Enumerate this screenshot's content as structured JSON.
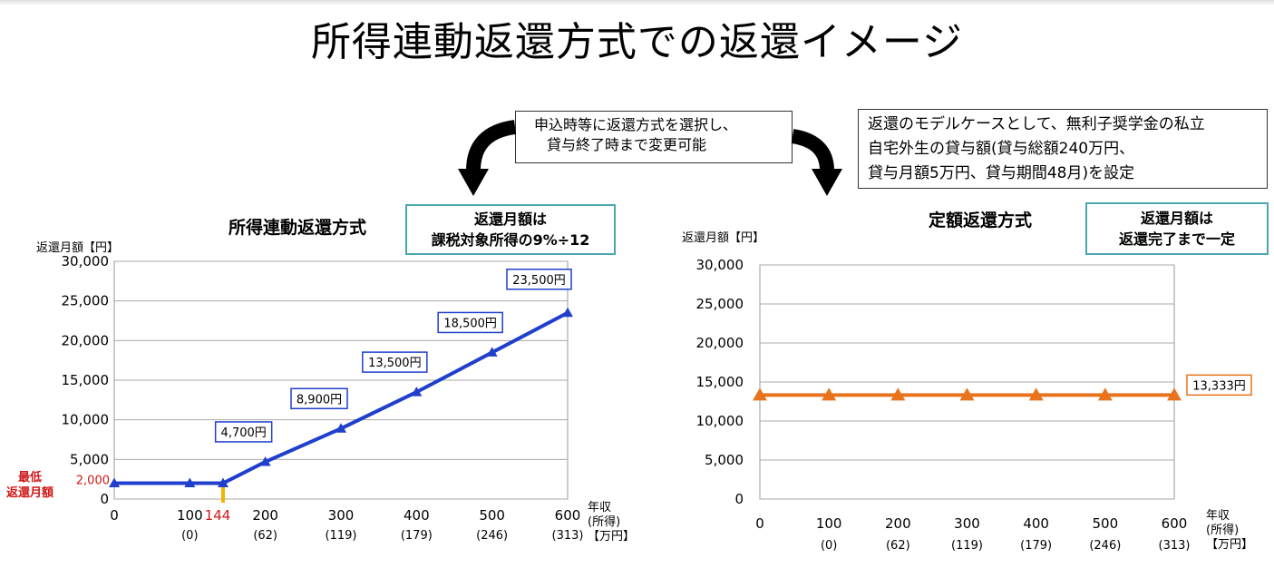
{
  "title": "所得連動返還方式での返還イメージ",
  "note_center": [
    "申込時等に返還方式を選択し、",
    "貸与終了時まで変更可能"
  ],
  "note_right": [
    "返還のモデルケースとして、無利子奨学金の私立",
    "自宅外生の貸与額(貸与総額240万円、",
    "貸与月額5万円、貸与期間48月)を設定"
  ],
  "colors": {
    "left_series": "#1f3fcc",
    "right_series": "#e8731c",
    "teal_border": "#4aa7b1",
    "minimum_label": "#d01818",
    "marker_144": "#f0b400"
  },
  "chart_data": [
    {
      "type": "line",
      "title": "所得連動返還方式",
      "ylabel": "返還月額【円】",
      "xlabel": [
        "年収",
        "(所得)",
        "【万円】"
      ],
      "ylim": [
        0,
        30000
      ],
      "xlim": [
        0,
        600
      ],
      "y_ticks": [
        "0",
        "5,000",
        "10,000",
        "15,000",
        "20,000",
        "25,000",
        "30,000"
      ],
      "x_ticks": [
        {
          "x": 0,
          "label": "0",
          "sub": ""
        },
        {
          "x": 100,
          "label": "100",
          "sub": "(0)"
        },
        {
          "x": 200,
          "label": "200",
          "sub": "(62)"
        },
        {
          "x": 300,
          "label": "300",
          "sub": "(119)"
        },
        {
          "x": 400,
          "label": "400",
          "sub": "(179)"
        },
        {
          "x": 500,
          "label": "500",
          "sub": "(246)"
        },
        {
          "x": 600,
          "label": "600",
          "sub": "(313)"
        }
      ],
      "extra_tick": {
        "x": 144,
        "label": "144"
      },
      "grid": true,
      "info_box": [
        "返還月額は",
        "課税対象所得の9%÷12"
      ],
      "series": [
        {
          "x": [
            0,
            100,
            144,
            200,
            300,
            400,
            500,
            600
          ],
          "y": [
            2000,
            2000,
            2000,
            4700,
            8900,
            13500,
            18500,
            23500
          ]
        }
      ],
      "data_labels": [
        {
          "x": 200,
          "label": "4,700円"
        },
        {
          "x": 300,
          "label": "8,900円"
        },
        {
          "x": 400,
          "label": "13,500円"
        },
        {
          "x": 500,
          "label": "18,500円"
        },
        {
          "x": 600,
          "label": "23,500円"
        }
      ],
      "min_annotation": {
        "value_label": "2,000",
        "text": [
          "最低",
          "返還月額"
        ]
      }
    },
    {
      "type": "line",
      "title": "定額返還方式",
      "ylabel": "返還月額【円】",
      "xlabel": [
        "年収",
        "(所得)",
        "【万円】"
      ],
      "ylim": [
        0,
        30000
      ],
      "xlim": [
        0,
        600
      ],
      "y_ticks": [
        "0",
        "5,000",
        "10,000",
        "15,000",
        "20,000",
        "25,000",
        "30,000"
      ],
      "x_ticks": [
        {
          "x": 0,
          "label": "0",
          "sub": ""
        },
        {
          "x": 100,
          "label": "100",
          "sub": "(0)"
        },
        {
          "x": 200,
          "label": "200",
          "sub": "(62)"
        },
        {
          "x": 300,
          "label": "300",
          "sub": "(119)"
        },
        {
          "x": 400,
          "label": "400",
          "sub": "(179)"
        },
        {
          "x": 500,
          "label": "500",
          "sub": "(246)"
        },
        {
          "x": 600,
          "label": "600",
          "sub": "(313)"
        }
      ],
      "grid": true,
      "info_box": [
        "返還月額は",
        "返還完了まで一定"
      ],
      "series": [
        {
          "x": [
            0,
            100,
            200,
            300,
            400,
            500,
            600
          ],
          "y": [
            13333,
            13333,
            13333,
            13333,
            13333,
            13333,
            13333
          ]
        }
      ],
      "data_labels": [
        {
          "x": 600,
          "label": "13,333円"
        }
      ]
    }
  ]
}
